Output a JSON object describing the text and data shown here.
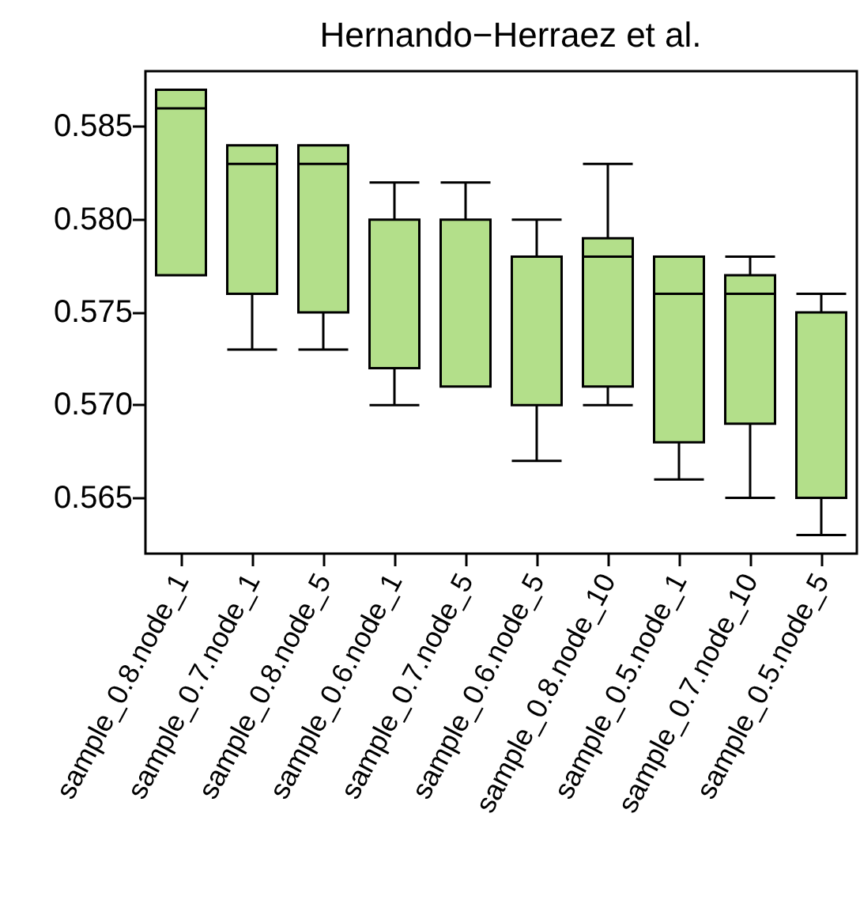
{
  "chart_data": {
    "type": "box",
    "title": "Hernando−Herraez et al.",
    "categories": [
      "sample_0.8.node_1",
      "sample_0.7.node_1",
      "sample_0.8.node_5",
      "sample_0.6.node_1",
      "sample_0.7.node_5",
      "sample_0.6.node_5",
      "sample_0.8.node_10",
      "sample_0.5.node_1",
      "sample_0.7.node_10",
      "sample_0.5.node_5"
    ],
    "boxes": [
      {
        "low": 0.577,
        "q1": 0.577,
        "median": 0.586,
        "q3": 0.587,
        "high": 0.587
      },
      {
        "low": 0.573,
        "q1": 0.576,
        "median": 0.583,
        "q3": 0.584,
        "high": 0.584
      },
      {
        "low": 0.573,
        "q1": 0.575,
        "median": 0.583,
        "q3": 0.584,
        "high": 0.584
      },
      {
        "low": 0.57,
        "q1": 0.572,
        "median": 0.58,
        "q3": 0.58,
        "high": 0.582
      },
      {
        "low": 0.571,
        "q1": 0.571,
        "median": 0.58,
        "q3": 0.58,
        "high": 0.582
      },
      {
        "low": 0.567,
        "q1": 0.57,
        "median": 0.578,
        "q3": 0.578,
        "high": 0.58
      },
      {
        "low": 0.57,
        "q1": 0.571,
        "median": 0.578,
        "q3": 0.579,
        "high": 0.583
      },
      {
        "low": 0.566,
        "q1": 0.568,
        "median": 0.576,
        "q3": 0.578,
        "high": 0.578
      },
      {
        "low": 0.565,
        "q1": 0.569,
        "median": 0.576,
        "q3": 0.577,
        "high": 0.578
      },
      {
        "low": 0.563,
        "q1": 0.565,
        "median": 0.575,
        "q3": 0.575,
        "high": 0.576
      }
    ],
    "color": "#b3df8a",
    "ylim": [
      0.562,
      0.588
    ],
    "yticks": [
      0.565,
      {
        "value": 0.57,
        "label": "0.570"
      },
      0.575,
      {
        "value": 0.58,
        "label": "0.580"
      },
      0.585
    ],
    "grid": false
  }
}
